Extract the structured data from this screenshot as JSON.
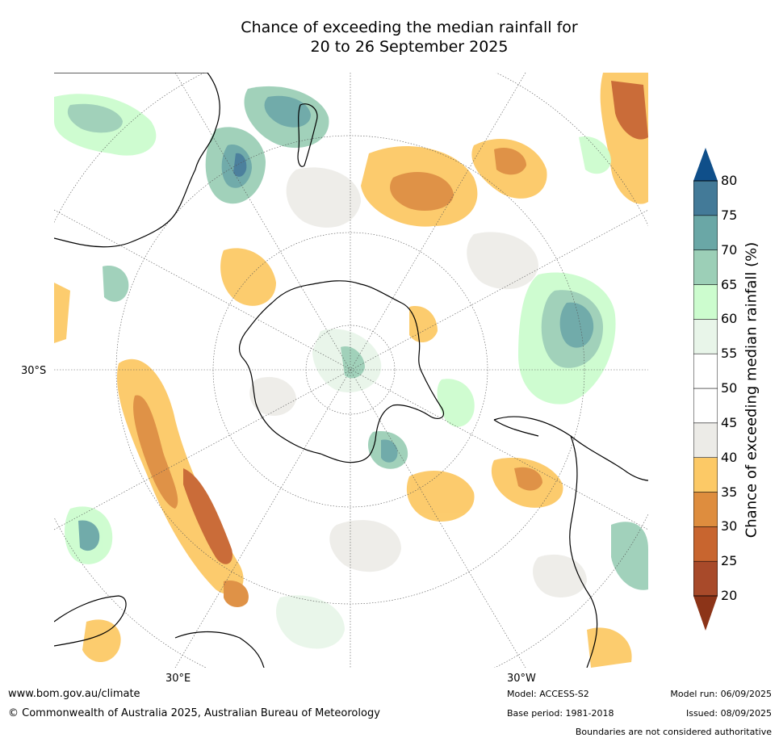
{
  "title_line1": "Chance of exceeding the median rainfall for",
  "title_line2": "20 to 26 September 2025",
  "axis_labels": {
    "lat_30s": "30°S",
    "lon_30e": "30°E",
    "lon_30w": "30°W"
  },
  "colorbar": {
    "title": "Chance of exceeding median rainfall (%)",
    "ticks": [
      "20",
      "25",
      "30",
      "35",
      "40",
      "45",
      "50",
      "55",
      "60",
      "65",
      "70",
      "75",
      "80"
    ],
    "colors_low_to_high": [
      "#a84a2a",
      "#c8652f",
      "#de8d3e",
      "#fcc966",
      "#ecebe7",
      "#ffffff",
      "#ffffff",
      "#e8f5e9",
      "#ccfcce",
      "#9ccfb7",
      "#6aa7a6",
      "#437a98"
    ],
    "under_color": "#8c3418",
    "over_color": "#0f4f8a"
  },
  "footer": {
    "website": "www.bom.gov.au/climate",
    "copyright": "© Commonwealth of Australia 2025, Australian Bureau of Meteorology",
    "model": "Model: ACCESS-S2",
    "base_period": "Base period: 1981-2018",
    "model_run": "Model run: 06/09/2025",
    "issued": "Issued: 08/09/2025",
    "disclaimer": "Boundaries are not considered authoritative"
  }
}
